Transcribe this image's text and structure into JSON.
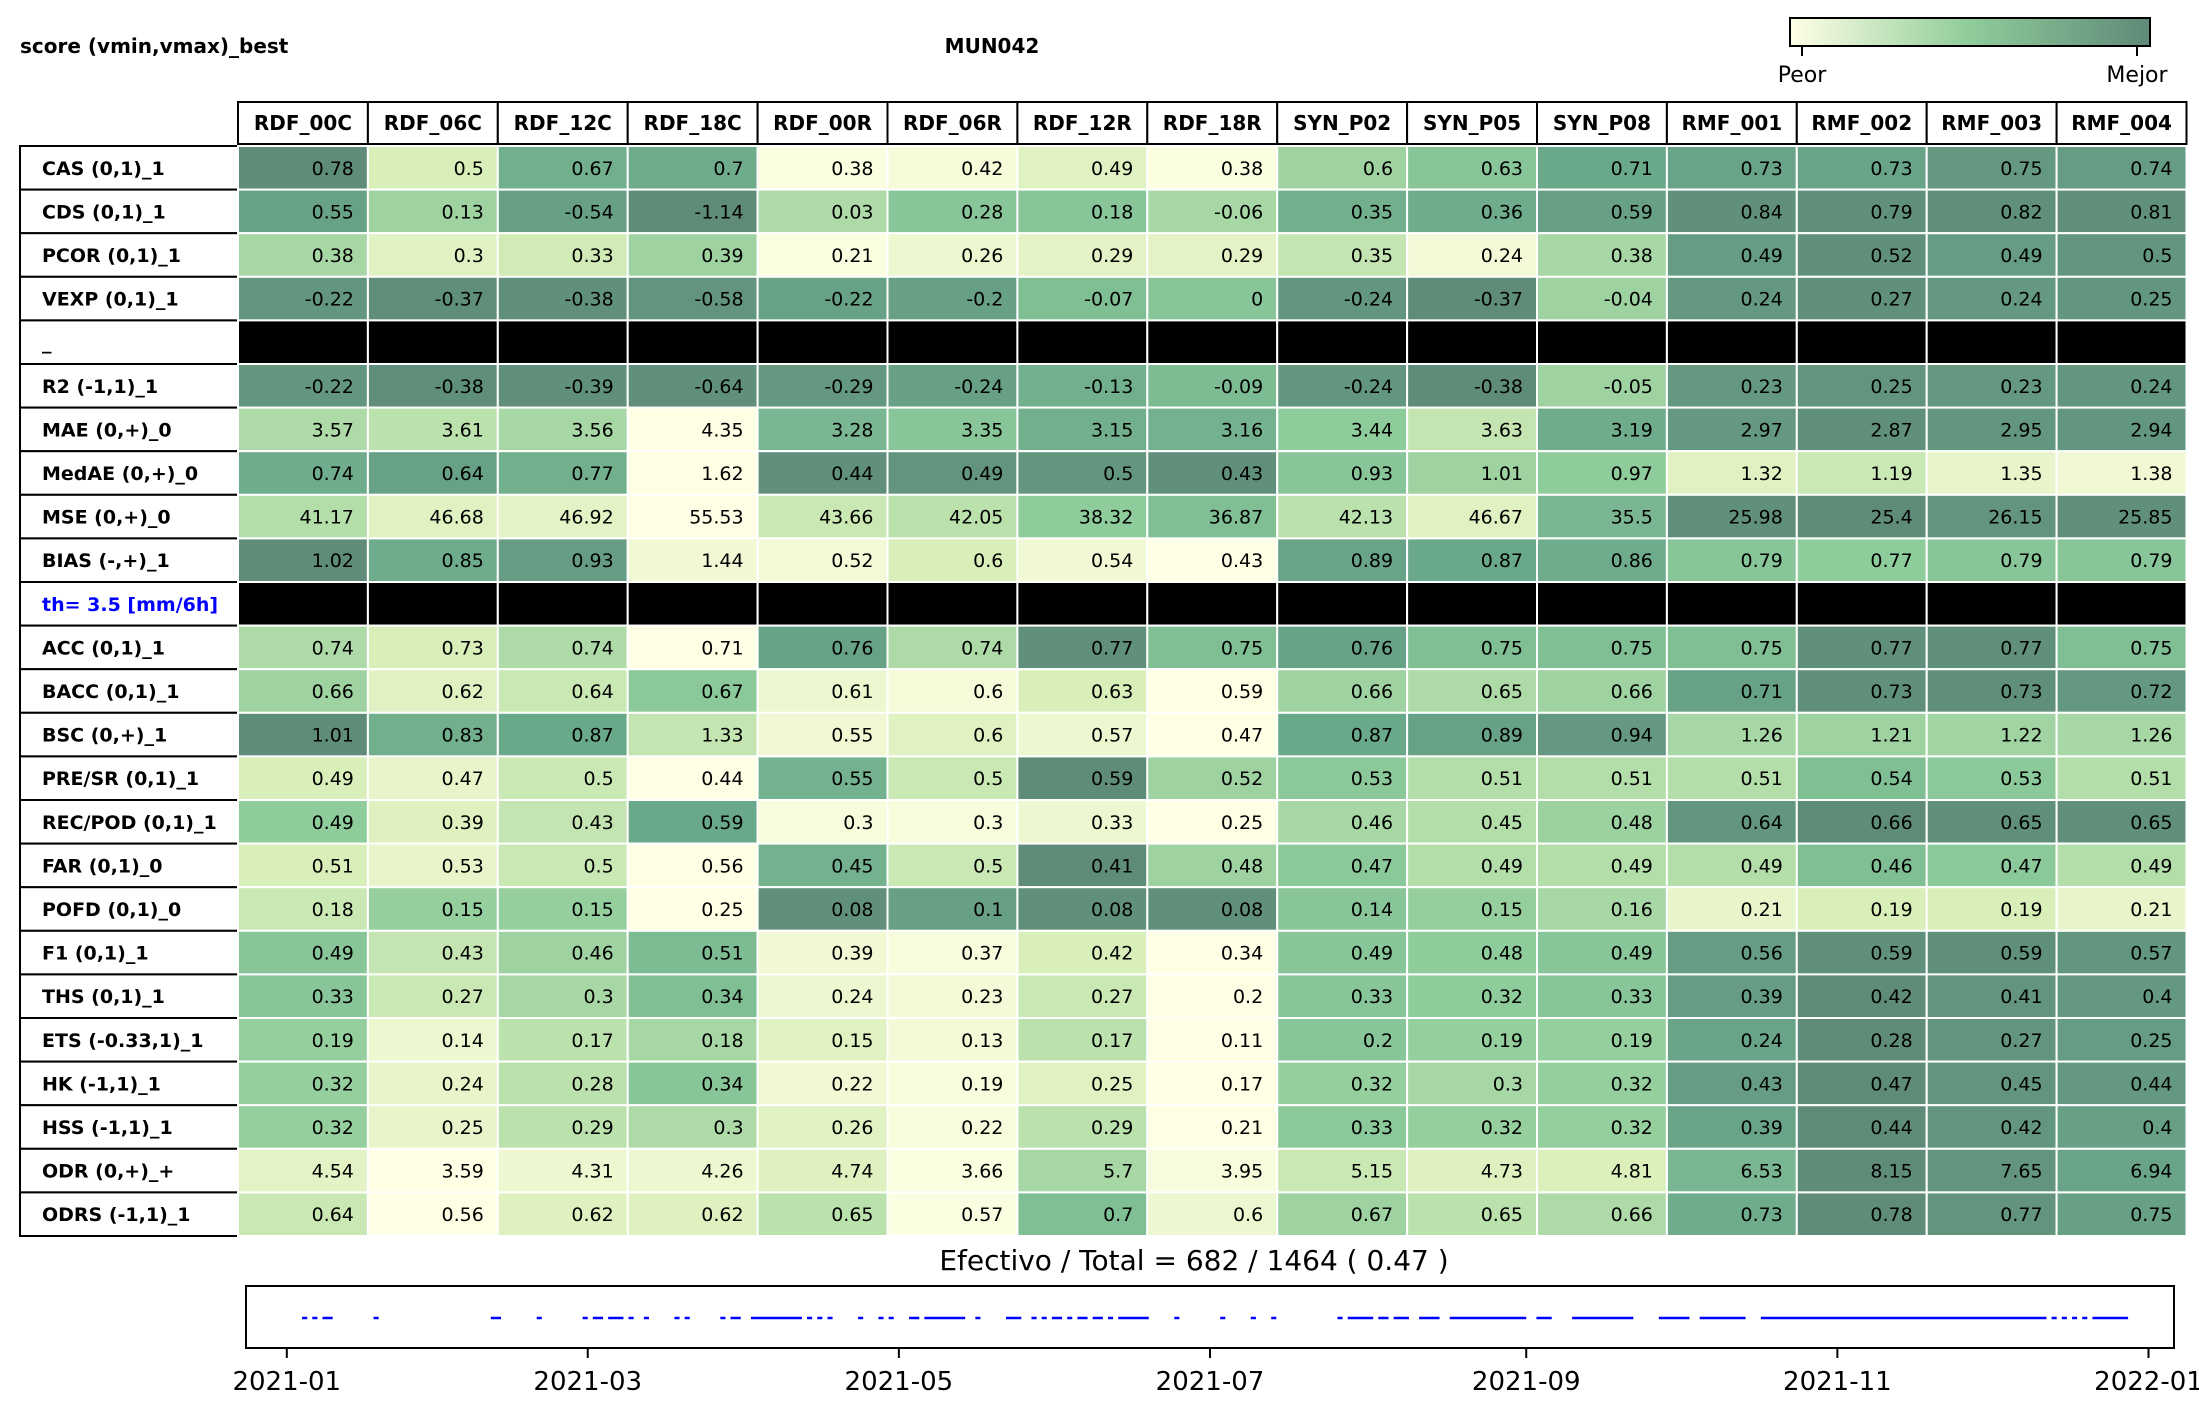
{
  "chart_data": {
    "type": "heatmap",
    "title": "MUN042",
    "corner_label": "score (vmin,vmax)_best",
    "colorbar": {
      "low_label": "Peor",
      "high_label": "Mejor",
      "low_color": "#ffffe5",
      "high_color": "#5e8a78"
    },
    "columns": [
      "RDF_00C",
      "RDF_06C",
      "RDF_12C",
      "RDF_18C",
      "RDF_00R",
      "RDF_06R",
      "RDF_12R",
      "RDF_18R",
      "SYN_P02",
      "SYN_P05",
      "SYN_P08",
      "RMF_001",
      "RMF_002",
      "RMF_003",
      "RMF_004"
    ],
    "rows": [
      {
        "label": "CAS (0,1)_1",
        "values": [
          0.78,
          0.5,
          0.67,
          0.7,
          0.38,
          0.42,
          0.49,
          0.38,
          0.6,
          0.63,
          0.71,
          0.73,
          0.73,
          0.75,
          0.74
        ],
        "levels": [
          0.98,
          0.25,
          0.7,
          0.72,
          0.02,
          0.06,
          0.2,
          0.02,
          0.45,
          0.55,
          0.75,
          0.78,
          0.78,
          0.88,
          0.85
        ]
      },
      {
        "label": "CDS (0,1)_1",
        "values": [
          0.55,
          0.13,
          -0.54,
          -1.14,
          0.03,
          0.28,
          0.18,
          -0.06,
          0.35,
          0.36,
          0.59,
          0.84,
          0.79,
          0.82,
          0.81
        ],
        "levels": [
          0.8,
          0.45,
          0.82,
          0.98,
          0.4,
          0.55,
          0.55,
          0.42,
          0.7,
          0.72,
          0.82,
          0.95,
          0.95,
          0.95,
          0.95
        ]
      },
      {
        "label": "PCOR (0,1)_1",
        "values": [
          0.38,
          0.3,
          0.33,
          0.39,
          0.21,
          0.26,
          0.29,
          0.29,
          0.35,
          0.24,
          0.38,
          0.49,
          0.52,
          0.49,
          0.5
        ],
        "levels": [
          0.42,
          0.2,
          0.28,
          0.45,
          0.02,
          0.12,
          0.18,
          0.18,
          0.32,
          0.08,
          0.42,
          0.85,
          0.95,
          0.85,
          0.9
        ]
      },
      {
        "label": "VEXP (0,1)_1",
        "values": [
          -0.22,
          -0.37,
          -0.38,
          -0.58,
          -0.22,
          -0.2,
          -0.07,
          0.0,
          -0.24,
          -0.37,
          -0.04,
          0.24,
          0.27,
          0.24,
          0.25
        ],
        "levels": [
          0.9,
          0.97,
          0.95,
          0.92,
          0.8,
          0.82,
          0.6,
          0.55,
          0.9,
          0.98,
          0.45,
          0.88,
          0.95,
          0.88,
          0.9
        ]
      },
      {
        "label": "_",
        "separator": true
      },
      {
        "label": "R2 (-1,1)_1",
        "values": [
          -0.22,
          -0.38,
          -0.39,
          -0.64,
          -0.29,
          -0.24,
          -0.13,
          -0.09,
          -0.24,
          -0.38,
          -0.05,
          0.23,
          0.25,
          0.23,
          0.24
        ],
        "levels": [
          0.9,
          0.97,
          0.95,
          0.95,
          0.88,
          0.82,
          0.7,
          0.62,
          0.9,
          0.98,
          0.45,
          0.88,
          0.92,
          0.88,
          0.9
        ]
      },
      {
        "label": "MAE (0,+)_0",
        "values": [
          3.57,
          3.61,
          3.56,
          4.35,
          3.28,
          3.35,
          3.15,
          3.16,
          3.44,
          3.63,
          3.19,
          2.97,
          2.87,
          2.95,
          2.94
        ],
        "levels": [
          0.4,
          0.35,
          0.42,
          0.0,
          0.65,
          0.55,
          0.7,
          0.68,
          0.5,
          0.32,
          0.72,
          0.88,
          0.95,
          0.9,
          0.9
        ]
      },
      {
        "label": "MedAE (0,+)_0",
        "values": [
          0.74,
          0.64,
          0.77,
          1.62,
          0.44,
          0.49,
          0.5,
          0.43,
          0.93,
          1.01,
          0.97,
          1.32,
          1.19,
          1.35,
          1.38
        ],
        "levels": [
          0.72,
          0.8,
          0.7,
          0.0,
          0.95,
          0.92,
          0.9,
          0.95,
          0.55,
          0.45,
          0.5,
          0.2,
          0.3,
          0.15,
          0.1
        ]
      },
      {
        "label": "MSE (0,+)_0",
        "values": [
          41.17,
          46.68,
          46.92,
          55.53,
          43.66,
          42.05,
          38.32,
          36.87,
          42.13,
          46.67,
          35.5,
          25.98,
          25.4,
          26.15,
          25.85
        ],
        "levels": [
          0.38,
          0.2,
          0.18,
          0.0,
          0.3,
          0.35,
          0.5,
          0.6,
          0.35,
          0.2,
          0.65,
          0.95,
          0.98,
          0.92,
          0.95
        ]
      },
      {
        "label": "BIAS (-,+)_1",
        "values": [
          1.02,
          0.85,
          0.93,
          1.44,
          0.52,
          0.6,
          0.54,
          0.43,
          0.89,
          0.87,
          0.86,
          0.79,
          0.77,
          0.79,
          0.79
        ],
        "levels": [
          0.98,
          0.72,
          0.85,
          0.1,
          0.08,
          0.25,
          0.1,
          0.0,
          0.78,
          0.75,
          0.72,
          0.55,
          0.5,
          0.55,
          0.55
        ]
      },
      {
        "label": "th= 3.5 [mm/6h]",
        "separator": true,
        "highlight": true
      },
      {
        "label": "ACC (0,1)_1",
        "values": [
          0.74,
          0.73,
          0.74,
          0.71,
          0.76,
          0.74,
          0.77,
          0.75,
          0.76,
          0.75,
          0.75,
          0.75,
          0.77,
          0.77,
          0.75
        ],
        "levels": [
          0.4,
          0.25,
          0.4,
          0.0,
          0.8,
          0.4,
          0.95,
          0.6,
          0.8,
          0.6,
          0.6,
          0.6,
          0.95,
          0.95,
          0.6
        ]
      },
      {
        "label": "BACC (0,1)_1",
        "values": [
          0.66,
          0.62,
          0.64,
          0.67,
          0.61,
          0.6,
          0.63,
          0.59,
          0.66,
          0.65,
          0.66,
          0.71,
          0.73,
          0.73,
          0.72
        ],
        "levels": [
          0.45,
          0.2,
          0.3,
          0.52,
          0.12,
          0.06,
          0.25,
          0.0,
          0.45,
          0.4,
          0.45,
          0.8,
          0.95,
          0.95,
          0.88
        ]
      },
      {
        "label": "BSC (0,+)_1",
        "values": [
          1.01,
          0.83,
          0.87,
          1.33,
          0.55,
          0.6,
          0.57,
          0.47,
          0.87,
          0.89,
          0.94,
          1.26,
          1.21,
          1.22,
          1.26
        ],
        "levels": [
          0.98,
          0.7,
          0.75,
          0.32,
          0.1,
          0.2,
          0.12,
          0.0,
          0.75,
          0.8,
          0.88,
          0.42,
          0.45,
          0.44,
          0.42
        ]
      },
      {
        "label": "PRE/SR (0,1)_1",
        "values": [
          0.49,
          0.47,
          0.5,
          0.44,
          0.55,
          0.5,
          0.59,
          0.52,
          0.53,
          0.51,
          0.51,
          0.51,
          0.54,
          0.53,
          0.51
        ],
        "levels": [
          0.25,
          0.15,
          0.3,
          0.0,
          0.68,
          0.3,
          0.98,
          0.45,
          0.52,
          0.38,
          0.38,
          0.38,
          0.6,
          0.52,
          0.38
        ]
      },
      {
        "label": "REC/POD (0,1)_1",
        "values": [
          0.49,
          0.39,
          0.43,
          0.59,
          0.3,
          0.3,
          0.33,
          0.25,
          0.46,
          0.45,
          0.48,
          0.64,
          0.66,
          0.65,
          0.65
        ],
        "levels": [
          0.5,
          0.22,
          0.32,
          0.75,
          0.05,
          0.05,
          0.12,
          0.0,
          0.42,
          0.38,
          0.46,
          0.9,
          0.98,
          0.95,
          0.95
        ]
      },
      {
        "label": "FAR (0,1)_0",
        "values": [
          0.51,
          0.53,
          0.5,
          0.56,
          0.45,
          0.5,
          0.41,
          0.48,
          0.47,
          0.49,
          0.49,
          0.49,
          0.46,
          0.47,
          0.49
        ],
        "levels": [
          0.25,
          0.15,
          0.3,
          0.0,
          0.68,
          0.3,
          0.98,
          0.45,
          0.52,
          0.38,
          0.38,
          0.38,
          0.6,
          0.52,
          0.38
        ]
      },
      {
        "label": "POFD (0,1)_0",
        "values": [
          0.18,
          0.15,
          0.15,
          0.25,
          0.08,
          0.1,
          0.08,
          0.08,
          0.14,
          0.15,
          0.16,
          0.21,
          0.19,
          0.19,
          0.21
        ],
        "levels": [
          0.3,
          0.48,
          0.48,
          0.0,
          0.95,
          0.82,
          0.95,
          0.95,
          0.55,
          0.48,
          0.42,
          0.15,
          0.25,
          0.25,
          0.15
        ]
      },
      {
        "label": "F1 (0,1)_1",
        "values": [
          0.49,
          0.43,
          0.46,
          0.51,
          0.39,
          0.37,
          0.42,
          0.34,
          0.49,
          0.48,
          0.49,
          0.56,
          0.59,
          0.59,
          0.57
        ],
        "levels": [
          0.55,
          0.32,
          0.45,
          0.62,
          0.1,
          0.05,
          0.25,
          0.0,
          0.55,
          0.5,
          0.55,
          0.85,
          0.95,
          0.95,
          0.9
        ]
      },
      {
        "label": "THS (0,1)_1",
        "values": [
          0.33,
          0.27,
          0.3,
          0.34,
          0.24,
          0.23,
          0.27,
          0.2,
          0.33,
          0.32,
          0.33,
          0.39,
          0.42,
          0.41,
          0.4
        ],
        "levels": [
          0.55,
          0.3,
          0.42,
          0.6,
          0.12,
          0.08,
          0.3,
          0.0,
          0.55,
          0.5,
          0.55,
          0.85,
          0.98,
          0.92,
          0.88
        ]
      },
      {
        "label": "ETS (-0.33,1)_1",
        "values": [
          0.19,
          0.14,
          0.17,
          0.18,
          0.15,
          0.13,
          0.17,
          0.11,
          0.2,
          0.19,
          0.19,
          0.24,
          0.28,
          0.27,
          0.25
        ],
        "levels": [
          0.48,
          0.12,
          0.35,
          0.42,
          0.2,
          0.08,
          0.35,
          0.0,
          0.55,
          0.48,
          0.48,
          0.78,
          0.98,
          0.92,
          0.85
        ]
      },
      {
        "label": "HK (-1,1)_1",
        "values": [
          0.32,
          0.24,
          0.28,
          0.34,
          0.22,
          0.19,
          0.25,
          0.17,
          0.32,
          0.3,
          0.32,
          0.43,
          0.47,
          0.45,
          0.44
        ],
        "levels": [
          0.48,
          0.15,
          0.35,
          0.55,
          0.1,
          0.05,
          0.2,
          0.0,
          0.48,
          0.42,
          0.48,
          0.85,
          0.98,
          0.92,
          0.88
        ]
      },
      {
        "label": "HSS (-1,1)_1",
        "values": [
          0.32,
          0.25,
          0.29,
          0.3,
          0.26,
          0.22,
          0.29,
          0.21,
          0.33,
          0.32,
          0.32,
          0.39,
          0.44,
          0.42,
          0.4
        ],
        "levels": [
          0.48,
          0.15,
          0.35,
          0.4,
          0.2,
          0.05,
          0.35,
          0.0,
          0.52,
          0.48,
          0.48,
          0.78,
          0.98,
          0.9,
          0.82
        ]
      },
      {
        "label": "ODR (0,+)_+",
        "values": [
          4.54,
          3.59,
          4.31,
          4.26,
          4.74,
          3.66,
          5.7,
          3.95,
          5.15,
          4.73,
          4.81,
          6.53,
          8.15,
          7.65,
          6.94
        ],
        "levels": [
          0.18,
          0.0,
          0.12,
          0.12,
          0.22,
          0.02,
          0.42,
          0.05,
          0.3,
          0.22,
          0.24,
          0.65,
          0.98,
          0.92,
          0.78
        ]
      },
      {
        "label": "ODRS (-1,1)_1",
        "values": [
          0.64,
          0.56,
          0.62,
          0.62,
          0.65,
          0.57,
          0.7,
          0.6,
          0.67,
          0.65,
          0.66,
          0.73,
          0.78,
          0.77,
          0.75
        ],
        "levels": [
          0.3,
          0.0,
          0.22,
          0.22,
          0.35,
          0.02,
          0.6,
          0.12,
          0.45,
          0.35,
          0.4,
          0.72,
          0.98,
          0.92,
          0.82
        ]
      }
    ],
    "count_label": "Efectivo / Total  =  682 / 1464 ( 0.47 )",
    "timeline": {
      "type": "line",
      "xlabel": "",
      "ylabel": "",
      "x_ticks": [
        "2021-01",
        "2021-03",
        "2021-05",
        "2021-07",
        "2021-09",
        "2021-11",
        "2022-01"
      ],
      "x_tick_days": [
        0,
        59,
        120,
        181,
        243,
        304,
        365
      ],
      "xlim_days": [
        -8,
        370
      ],
      "series_color": "#0000ff",
      "segments_days": [
        [
          3,
          4
        ],
        [
          5,
          6
        ],
        [
          7,
          9
        ],
        [
          17,
          18
        ],
        [
          40,
          42
        ],
        [
          49,
          50
        ],
        [
          58,
          59
        ],
        [
          60,
          62
        ],
        [
          63,
          66
        ],
        [
          67,
          68
        ],
        [
          70,
          71
        ],
        [
          76,
          77
        ],
        [
          78,
          79
        ],
        [
          85,
          86
        ],
        [
          87,
          89
        ],
        [
          91,
          92
        ],
        [
          92,
          101
        ],
        [
          102,
          103
        ],
        [
          104,
          105
        ],
        [
          106,
          107
        ],
        [
          112,
          113
        ],
        [
          116,
          117
        ],
        [
          118,
          119
        ],
        [
          122,
          124
        ],
        [
          125,
          133
        ],
        [
          135,
          136
        ],
        [
          141,
          144
        ],
        [
          146,
          147
        ],
        [
          148,
          149
        ],
        [
          150,
          152
        ],
        [
          153,
          154
        ],
        [
          155,
          157
        ],
        [
          158,
          160
        ],
        [
          161,
          162
        ],
        [
          163,
          169
        ],
        [
          174,
          175
        ],
        [
          183,
          184
        ],
        [
          189,
          190
        ],
        [
          193,
          194
        ],
        [
          206,
          207
        ],
        [
          208,
          213
        ],
        [
          214,
          216
        ],
        [
          217,
          220
        ],
        [
          222,
          226
        ],
        [
          228,
          243
        ],
        [
          245,
          248
        ],
        [
          252,
          264
        ],
        [
          269,
          275
        ],
        [
          277,
          286
        ],
        [
          289,
          345
        ],
        [
          346,
          347
        ],
        [
          348,
          349
        ],
        [
          350,
          351
        ],
        [
          352,
          353
        ],
        [
          354,
          361
        ]
      ]
    }
  }
}
